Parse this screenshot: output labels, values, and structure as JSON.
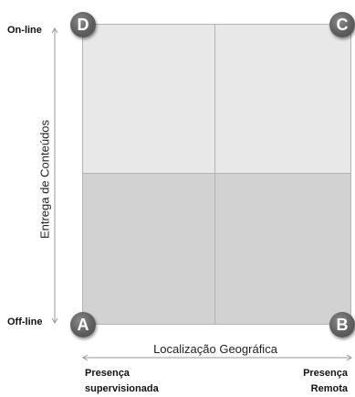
{
  "corners": {
    "top_left": "D",
    "top_right": "C",
    "bottom_left": "A",
    "bottom_right": "B"
  },
  "y_axis": {
    "title": "Entrega de Conteúdos",
    "top_label": "On-line",
    "bottom_label": "Off-line"
  },
  "x_axis": {
    "title": "Localização Geográfica",
    "left_label": [
      "Presença",
      "supervisionada"
    ],
    "right_label": [
      "Presença",
      "Remota"
    ]
  },
  "colors": {
    "upper_quadrants": "#e8e8e8",
    "lower_quadrants": "#d2d2d2",
    "corner_badge": "#5e5e5e"
  }
}
